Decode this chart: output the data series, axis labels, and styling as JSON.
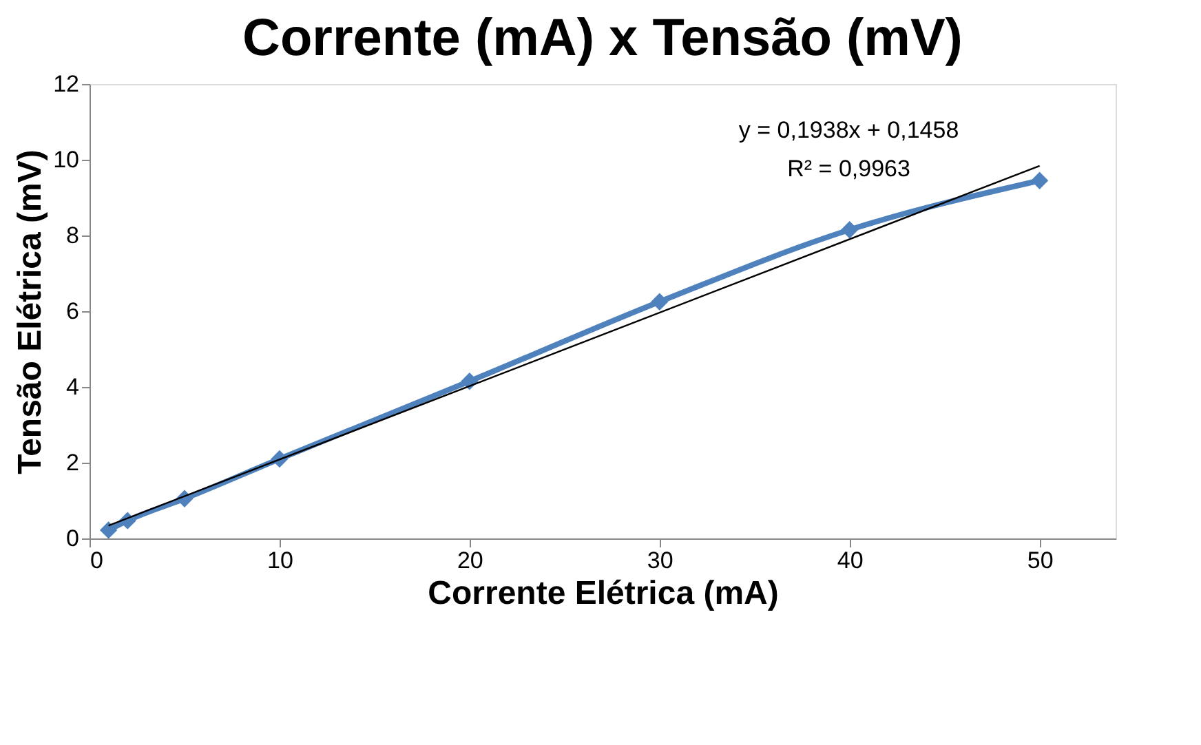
{
  "chart_data": {
    "type": "line",
    "title": "Corrente (mA) x Tensão (mV)",
    "xlabel": "Corrente Elétrica (mA)",
    "ylabel": "Tensão Elétrica (mV)",
    "x": [
      1,
      2,
      5,
      10,
      20,
      30,
      40,
      50
    ],
    "series": [
      {
        "color": "#4f81bd",
        "values": [
          0.22,
          0.47,
          1.05,
          2.1,
          4.15,
          6.25,
          8.15,
          9.45
        ],
        "marker": "diamond"
      },
      {
        "type": "line",
        "color": "#000000",
        "x": [
          1,
          50
        ],
        "values": [
          0.34,
          9.84
        ],
        "marker": "none"
      }
    ],
    "annotations": [
      "y = 0,1938x + 0,1458",
      "R² = 0,9963"
    ],
    "xlim": [
      0,
      54
    ],
    "xticks": [
      0,
      10,
      20,
      30,
      40,
      50
    ],
    "ylim": [
      0,
      12
    ],
    "yticks": [
      0,
      2,
      4,
      6,
      8,
      10,
      12
    ],
    "grid": false
  }
}
